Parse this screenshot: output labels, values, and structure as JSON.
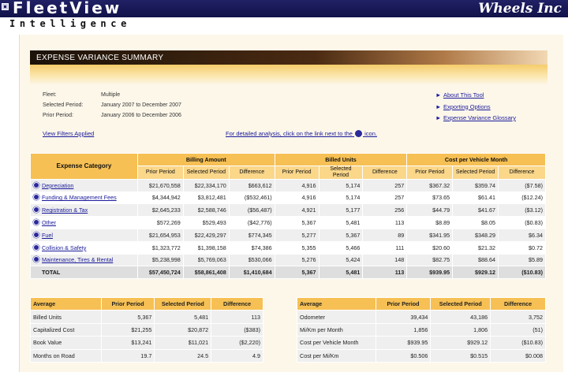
{
  "app": {
    "title": "FleetView",
    "subtitle": "Intelligence",
    "brand": "Wheels Inc"
  },
  "section": {
    "title": "EXPENSE VARIANCE SUMMARY"
  },
  "filters": [
    {
      "label": "Fleet:",
      "value": "Multiple"
    },
    {
      "label": "Selected Period:",
      "value": "January 2007 to December 2007"
    },
    {
      "label": "Prior Period:",
      "value": "January 2006 to December 2006"
    }
  ],
  "links": {
    "about": "About This Tool",
    "export": "Exporting Options",
    "glossary": "Expense Variance Glossary",
    "view_filters": "View Filters Applied",
    "hint_before": "For detailed analysis, click on the link next to the",
    "hint_after": "icon."
  },
  "summary": {
    "category_header": "Expense Category",
    "groups": [
      "Billing Amount",
      "Billed Units",
      "Cost per Vehicle Month"
    ],
    "subheaders": [
      "Prior Period",
      "Selected Period",
      "Difference"
    ],
    "rows": [
      {
        "name": "Depreciation",
        "v": [
          "$21,670,558",
          "$22,334,170",
          "$663,612",
          "4,916",
          "5,174",
          "257",
          "$367.32",
          "$359.74",
          "($7.58)"
        ]
      },
      {
        "name": "Funding & Management Fees",
        "v": [
          "$4,344,942",
          "$3,812,481",
          "($532,461)",
          "4,916",
          "5,174",
          "257",
          "$73.65",
          "$61.41",
          "($12.24)"
        ]
      },
      {
        "name": "Registration & Tax",
        "v": [
          "$2,645,233",
          "$2,588,746",
          "($56,487)",
          "4,921",
          "5,177",
          "256",
          "$44.79",
          "$41.67",
          "($3.12)"
        ]
      },
      {
        "name": "Other",
        "v": [
          "$572,269",
          "$529,493",
          "($42,776)",
          "5,367",
          "5,481",
          "113",
          "$8.89",
          "$8.05",
          "($0.83)"
        ]
      },
      {
        "name": "Fuel",
        "v": [
          "$21,654,953",
          "$22,429,297",
          "$774,345",
          "5,277",
          "5,367",
          "89",
          "$341.95",
          "$348.29",
          "$6.34"
        ]
      },
      {
        "name": "Collision & Safety",
        "v": [
          "$1,323,772",
          "$1,398,158",
          "$74,386",
          "5,355",
          "5,466",
          "111",
          "$20.60",
          "$21.32",
          "$0.72"
        ]
      },
      {
        "name": "Maintenance, Tires & Rental",
        "v": [
          "$5,238,998",
          "$5,769,063",
          "$530,066",
          "5,276",
          "5,424",
          "148",
          "$82.75",
          "$88.64",
          "$5.89"
        ]
      }
    ],
    "total": {
      "name": "TOTAL",
      "v": [
        "$57,450,724",
        "$58,861,408",
        "$1,410,684",
        "5,367",
        "5,481",
        "113",
        "$939.95",
        "$929.12",
        "($10.83)"
      ]
    }
  },
  "avg_left": {
    "headers": [
      "Average",
      "Prior Period",
      "Selected Period",
      "Difference"
    ],
    "rows": [
      [
        "Billed Units",
        "5,367",
        "5,481",
        "113"
      ],
      [
        "Capitalized Cost",
        "$21,255",
        "$20,872",
        "($383)"
      ],
      [
        "Book Value",
        "$13,241",
        "$11,021",
        "($2,220)"
      ],
      [
        "Months on Road",
        "19.7",
        "24.5",
        "4.9"
      ]
    ]
  },
  "avg_right": {
    "headers": [
      "Average",
      "Prior Period",
      "Selected Period",
      "Difference"
    ],
    "rows": [
      [
        "Odometer",
        "39,434",
        "43,186",
        "3,752"
      ],
      [
        "Mi/Km per Month",
        "1,856",
        "1,806",
        "(51)"
      ],
      [
        "Cost per Vehicle Month",
        "$939.95",
        "$929.12",
        "($10.83)"
      ],
      [
        "Cost per Mi/Km",
        "$0.506",
        "$0.515",
        "$0.008"
      ]
    ]
  },
  "colors": {
    "header_bar": "#202065",
    "table_header": "#f6c054",
    "link": "#1a1a9a"
  },
  "icons": {
    "menu": "menu-icon",
    "analysis": "drilldown-icon",
    "arrow": "triangle-right-icon"
  }
}
